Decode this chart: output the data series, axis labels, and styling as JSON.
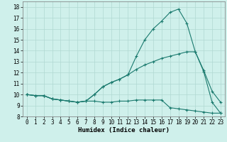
{
  "title": "",
  "xlabel": "Humidex (Indice chaleur)",
  "x": [
    0,
    1,
    2,
    3,
    4,
    5,
    6,
    7,
    8,
    9,
    10,
    11,
    12,
    13,
    14,
    15,
    16,
    17,
    18,
    19,
    20,
    21,
    22,
    23
  ],
  "line1": [
    10.0,
    9.9,
    9.9,
    9.6,
    9.5,
    9.4,
    9.3,
    9.4,
    10.0,
    10.7,
    11.1,
    11.4,
    11.8,
    13.5,
    15.0,
    16.0,
    16.7,
    17.5,
    17.8,
    16.5,
    13.9,
    12.2,
    10.3,
    9.3
  ],
  "line2": [
    10.0,
    9.9,
    9.9,
    9.6,
    9.5,
    9.4,
    9.3,
    9.4,
    10.0,
    10.7,
    11.1,
    11.4,
    11.8,
    12.3,
    12.7,
    13.0,
    13.3,
    13.5,
    13.7,
    13.9,
    13.9,
    12.1,
    9.3,
    8.3
  ],
  "line3": [
    10.0,
    9.9,
    9.9,
    9.6,
    9.5,
    9.4,
    9.3,
    9.4,
    9.4,
    9.3,
    9.3,
    9.4,
    9.4,
    9.5,
    9.5,
    9.5,
    9.5,
    8.8,
    8.7,
    8.6,
    8.5,
    8.4,
    8.3,
    8.3
  ],
  "line_color": "#1a7a6e",
  "bg_color": "#cff0eb",
  "grid_color": "#b0d8d2",
  "ylim": [
    8,
    18.5
  ],
  "xlim": [
    -0.5,
    23.5
  ],
  "yticks": [
    8,
    9,
    10,
    11,
    12,
    13,
    14,
    15,
    16,
    17,
    18
  ],
  "xticks": [
    0,
    1,
    2,
    3,
    4,
    5,
    6,
    7,
    8,
    9,
    10,
    11,
    12,
    13,
    14,
    15,
    16,
    17,
    18,
    19,
    20,
    21,
    22,
    23
  ],
  "marker": "+",
  "markersize": 3.5,
  "linewidth": 0.8,
  "tick_fontsize": 5.5,
  "label_fontsize": 6.5
}
